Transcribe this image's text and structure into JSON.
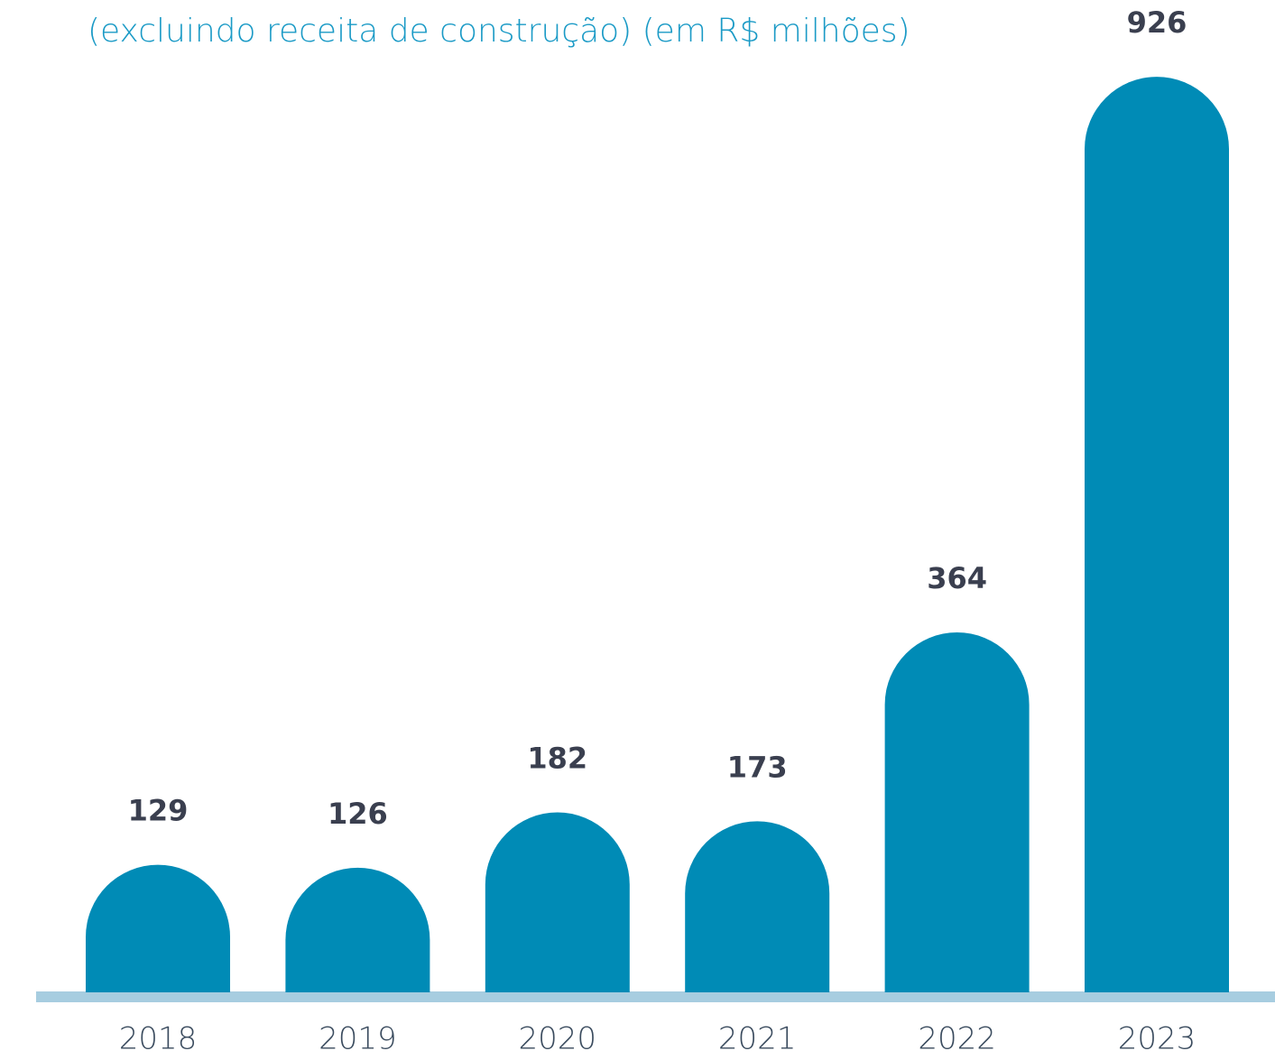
{
  "chart_data": {
    "type": "bar",
    "subtitle": "(excluindo receita de construção) (em R$ milhões)",
    "categories": [
      "2018",
      "2019",
      "2020",
      "2021",
      "2022",
      "2023"
    ],
    "values": [
      129,
      126,
      182,
      173,
      364,
      926
    ],
    "color": "#008bb6"
  }
}
